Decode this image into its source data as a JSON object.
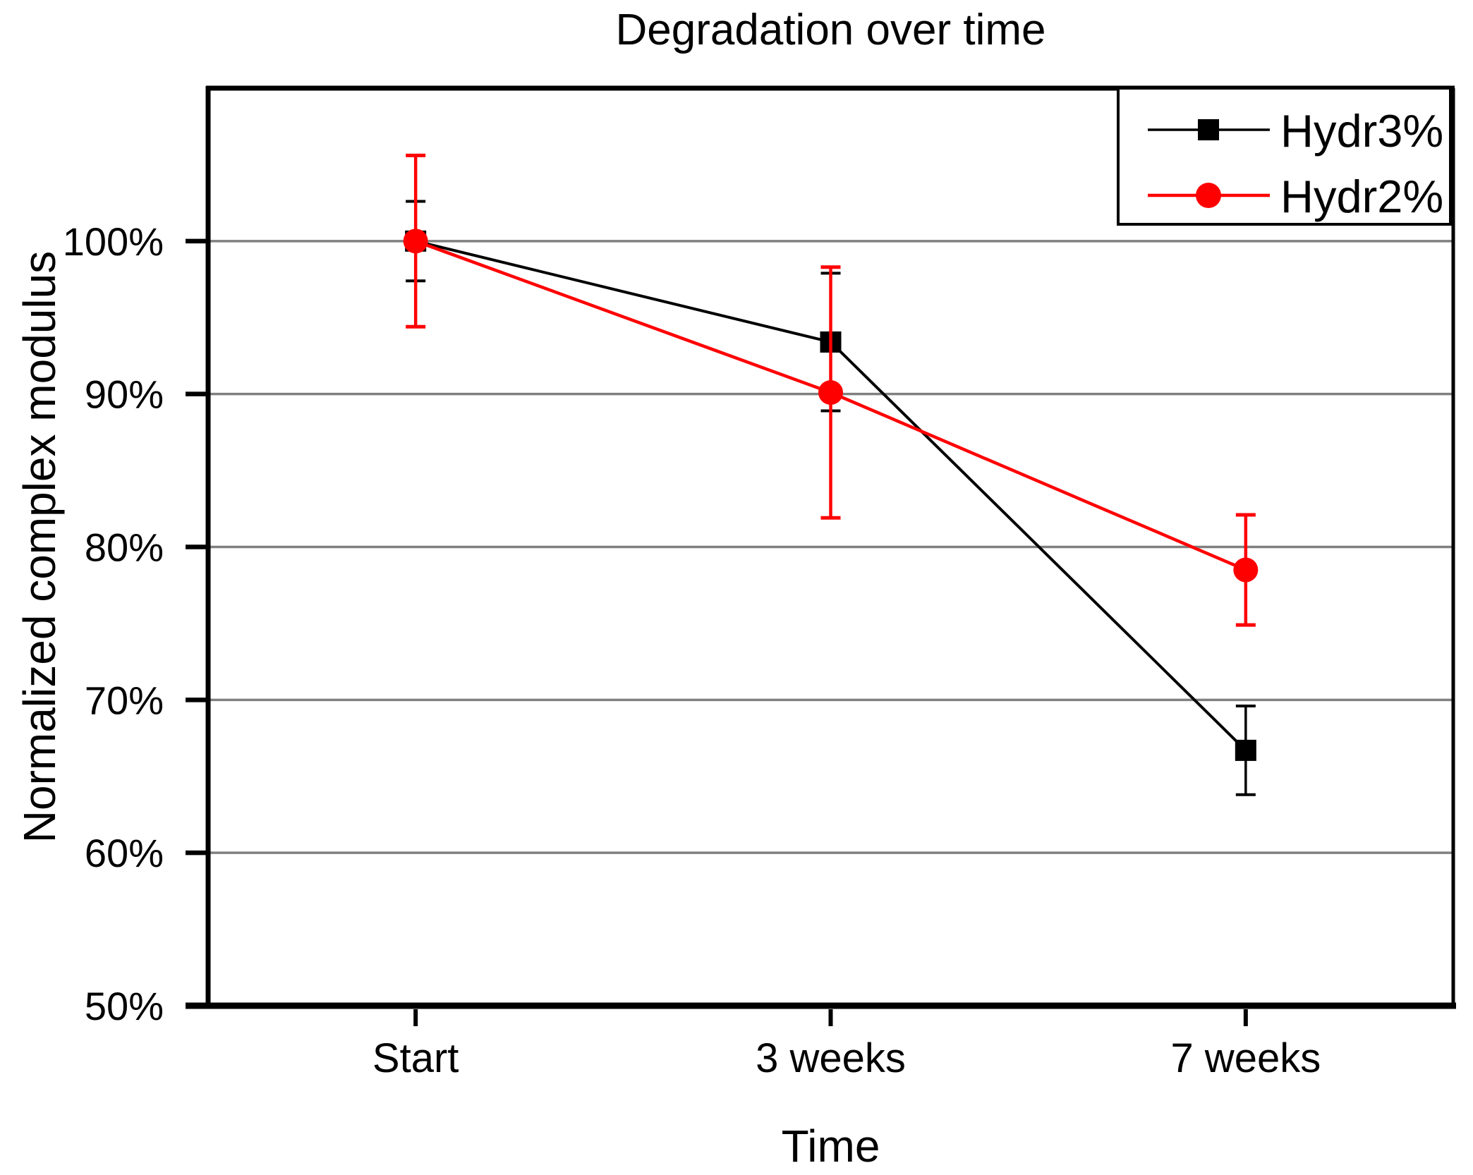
{
  "chart_data": {
    "type": "line",
    "title": "Degradation over time",
    "xlabel": "Time",
    "ylabel": "Normalized complex modulus",
    "categories": [
      "Start",
      "3 weeks",
      "7 weeks"
    ],
    "series": [
      {
        "name": "Hydr3%",
        "color": "#000000",
        "marker": "square",
        "values": [
          100.0,
          93.4,
          66.7
        ],
        "errors": [
          2.6,
          4.5,
          2.9
        ]
      },
      {
        "name": "Hydr2%",
        "color": "#ff0000",
        "marker": "circle",
        "values": [
          100.0,
          90.1,
          78.5
        ],
        "errors": [
          5.6,
          8.2,
          3.6
        ]
      }
    ],
    "ylim": [
      50,
      110
    ],
    "ytick_values": [
      50,
      60,
      70,
      80,
      90,
      100
    ],
    "ytick_labels": [
      "50%",
      "60%",
      "70%",
      "80%",
      "90%",
      "100%"
    ],
    "grid": "horizontal",
    "gridline_color": "#808080",
    "axis_color": "#000000",
    "background_color": "#ffffff",
    "legend_position": "top-right",
    "legend_entries": [
      "Hydr3%",
      "Hydr2%"
    ]
  }
}
